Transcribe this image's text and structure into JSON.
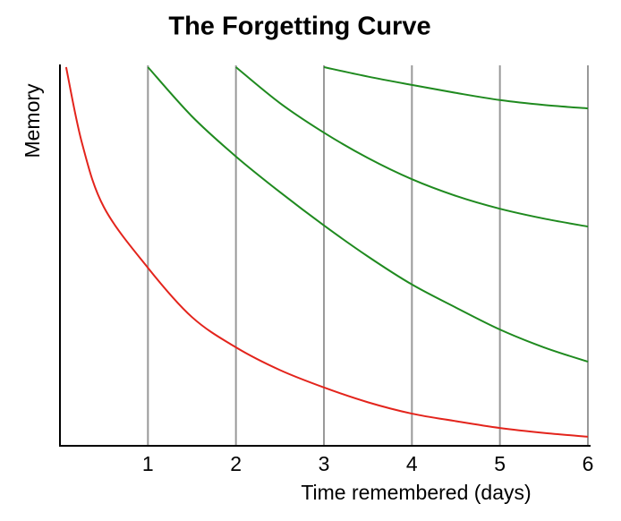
{
  "chart_data": {
    "type": "line",
    "title": "The Forgetting Curve",
    "x_label": "Time remembered (days)",
    "y_label": "Memory",
    "x": [
      0.07,
      0.25,
      0.5,
      1,
      1.5,
      2,
      2.5,
      3,
      3.5,
      4,
      4.5,
      5,
      5.5,
      6
    ],
    "series": [
      {
        "color": "#e3241c",
        "values": [
          100,
          80,
          63,
          47,
          34,
          26,
          20,
          15.4,
          11.5,
          8.5,
          6.5,
          4.7,
          3.4,
          2.4
        ]
      },
      {
        "color": "#1f8a1f",
        "values": [
          null,
          null,
          null,
          100,
          87,
          76.4,
          67,
          58.2,
          50,
          42.6,
          36.5,
          30.7,
          26,
          22.2
        ]
      },
      {
        "color": "#1f8a1f",
        "values": [
          null,
          null,
          null,
          null,
          null,
          100,
          90.5,
          82.7,
          76,
          70.4,
          66,
          62.6,
          60,
          57.9
        ]
      },
      {
        "color": "#1f8a1f",
        "values": [
          null,
          null,
          null,
          null,
          null,
          null,
          null,
          100,
          97.5,
          95.3,
          93.2,
          91.3,
          90,
          89.1
        ]
      }
    ],
    "xlim": [
      0,
      6
    ],
    "ylim": [
      0,
      100
    ],
    "xticks": [
      1,
      2,
      3,
      4,
      5,
      6
    ],
    "grid": true
  }
}
